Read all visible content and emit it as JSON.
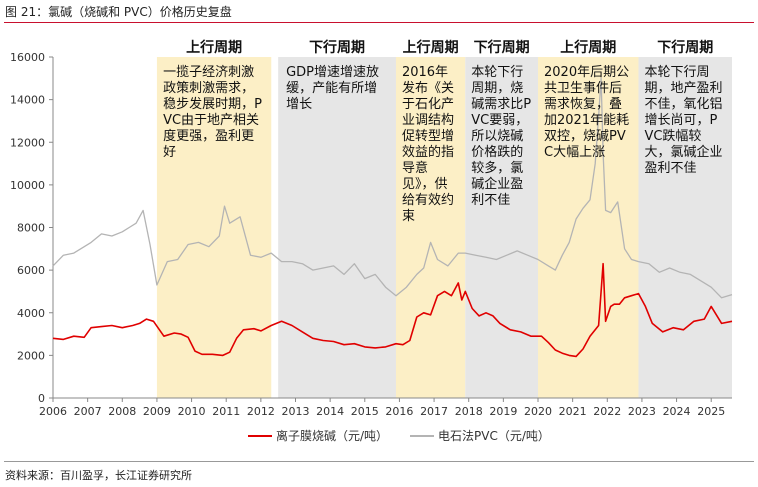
{
  "figure": {
    "title": "图 21：氯碱（烧碱和 PVC）价格历史复盘",
    "source": "资料来源：百川盈孚，长江证券研究所"
  },
  "chart_data": {
    "type": "line",
    "x_unit": "year",
    "xlim": [
      2006,
      2025.6
    ],
    "ylim": [
      0,
      16000
    ],
    "yticks": [
      0,
      2000,
      4000,
      6000,
      8000,
      10000,
      12000,
      14000,
      16000
    ],
    "xticks": [
      "2006",
      "2007",
      "2008",
      "2009",
      "2010",
      "2011",
      "2012",
      "2013",
      "2014",
      "2015",
      "2016",
      "2017",
      "2018",
      "2019",
      "2020",
      "2021",
      "2022",
      "2023",
      "2024",
      "2025"
    ],
    "grid": false,
    "legend_position": "bottom",
    "colors": {
      "up_band": "#fcefc6",
      "down_band": "#e6e6e6",
      "caustic": "#e00000",
      "pvc": "#b4b4b4"
    },
    "periods": [
      {
        "start": 2009.0,
        "end": 2012.3,
        "kind": "up",
        "header": "上行周期",
        "text": "一揽子经济刺激政策刺激需求，稳步发展时期，PVC由于地产相关度更强，盈利更好"
      },
      {
        "start": 2012.5,
        "end": 2015.9,
        "kind": "down",
        "header": "下行周期",
        "text": "GDP增速增速放缓，产能有所增增长"
      },
      {
        "start": 2015.9,
        "end": 2017.9,
        "kind": "up",
        "header": "上行周期",
        "text": "2016年发布《关于石化产业调结构促转型增效益的指导意见》，供给有效约束"
      },
      {
        "start": 2017.9,
        "end": 2020.0,
        "kind": "down",
        "header": "下行周期",
        "text": "本轮下行周期，烧碱需求比PVC要弱，所以烧碱价格跌的较多，氯碱企业盈利不佳"
      },
      {
        "start": 2020.0,
        "end": 2022.9,
        "kind": "up",
        "header": "上行周期",
        "text": "2020年后期公共卫生事件后需求恢复，叠加2021年能耗双控，烧碱PVC大幅上涨"
      },
      {
        "start": 2022.9,
        "end": 2025.6,
        "kind": "down",
        "header": "下行周期",
        "text": "本轮下行周期，地产盈利不佳，氧化铝增长尚可，PVC跌幅较大，氯碱企业盈利不佳"
      }
    ],
    "series": [
      {
        "name": "离子膜烧碱（元/吨）",
        "color": "#e00000",
        "x": [
          2006.0,
          2006.3,
          2006.6,
          2006.9,
          2007.1,
          2007.4,
          2007.7,
          2008.0,
          2008.3,
          2008.5,
          2008.7,
          2008.9,
          2009.2,
          2009.5,
          2009.7,
          2009.9,
          2010.1,
          2010.3,
          2010.6,
          2010.9,
          2011.1,
          2011.3,
          2011.5,
          2011.8,
          2012.0,
          2012.3,
          2012.6,
          2012.9,
          2013.2,
          2013.5,
          2013.8,
          2014.1,
          2014.4,
          2014.7,
          2015.0,
          2015.3,
          2015.6,
          2015.9,
          2016.1,
          2016.3,
          2016.5,
          2016.7,
          2016.9,
          2017.1,
          2017.3,
          2017.5,
          2017.7,
          2017.8,
          2017.9,
          2018.1,
          2018.3,
          2018.5,
          2018.7,
          2018.9,
          2019.2,
          2019.5,
          2019.8,
          2020.1,
          2020.3,
          2020.5,
          2020.7,
          2020.9,
          2021.1,
          2021.3,
          2021.5,
          2021.65,
          2021.75,
          2021.82,
          2021.88,
          2021.95,
          2022.1,
          2022.2,
          2022.35,
          2022.5,
          2022.7,
          2022.9,
          2023.1,
          2023.3,
          2023.6,
          2023.9,
          2024.2,
          2024.5,
          2024.8,
          2025.0,
          2025.3,
          2025.6
        ],
        "y": [
          2800,
          2750,
          2900,
          2850,
          3300,
          3350,
          3400,
          3300,
          3400,
          3500,
          3700,
          3600,
          2900,
          3050,
          3000,
          2850,
          2200,
          2050,
          2050,
          2000,
          2150,
          2800,
          3200,
          3250,
          3150,
          3400,
          3600,
          3400,
          3100,
          2800,
          2700,
          2650,
          2500,
          2550,
          2400,
          2350,
          2400,
          2550,
          2500,
          2700,
          3800,
          4000,
          3900,
          4800,
          5000,
          4800,
          5400,
          4600,
          5000,
          4200,
          3850,
          4000,
          3850,
          3500,
          3200,
          3100,
          2900,
          2900,
          2600,
          2250,
          2100,
          2000,
          1950,
          2300,
          2900,
          3200,
          3400,
          5000,
          6300,
          3600,
          4300,
          4400,
          4400,
          4700,
          4800,
          4900,
          4300,
          3500,
          3100,
          3300,
          3200,
          3600,
          3700,
          4300,
          3500,
          3600
        ]
      },
      {
        "name": "电石法PVC（元/吨）",
        "color": "#b4b4b4",
        "x": [
          2006.0,
          2006.3,
          2006.6,
          2006.9,
          2007.1,
          2007.4,
          2007.7,
          2008.0,
          2008.2,
          2008.4,
          2008.6,
          2008.8,
          2009.0,
          2009.3,
          2009.6,
          2009.9,
          2010.2,
          2010.5,
          2010.8,
          2010.95,
          2011.1,
          2011.4,
          2011.7,
          2012.0,
          2012.3,
          2012.6,
          2012.9,
          2013.2,
          2013.5,
          2013.8,
          2014.1,
          2014.4,
          2014.7,
          2015.0,
          2015.3,
          2015.6,
          2015.9,
          2016.2,
          2016.5,
          2016.7,
          2016.9,
          2017.1,
          2017.4,
          2017.7,
          2017.9,
          2018.2,
          2018.5,
          2018.8,
          2019.1,
          2019.4,
          2019.7,
          2020.0,
          2020.3,
          2020.5,
          2020.7,
          2020.9,
          2021.1,
          2021.3,
          2021.5,
          2021.65,
          2021.75,
          2021.82,
          2021.88,
          2021.95,
          2022.1,
          2022.3,
          2022.5,
          2022.7,
          2022.9,
          2023.2,
          2023.5,
          2023.8,
          2024.1,
          2024.4,
          2024.7,
          2025.0,
          2025.3,
          2025.6
        ],
        "y": [
          6200,
          6700,
          6800,
          7100,
          7300,
          7700,
          7600,
          7800,
          8000,
          8200,
          8800,
          7200,
          5300,
          6400,
          6500,
          7200,
          7300,
          7100,
          7600,
          9000,
          8200,
          8500,
          6700,
          6600,
          6800,
          6400,
          6400,
          6300,
          6000,
          6100,
          6200,
          5800,
          6300,
          5600,
          5800,
          5200,
          4800,
          5200,
          5800,
          6100,
          7300,
          6500,
          6200,
          6800,
          6800,
          6700,
          6600,
          6500,
          6700,
          6900,
          6700,
          6500,
          6200,
          6000,
          6700,
          7300,
          8400,
          8900,
          9300,
          11000,
          13200,
          15000,
          11500,
          8800,
          8700,
          9200,
          7000,
          6500,
          6400,
          6300,
          5900,
          6100,
          5900,
          5800,
          5500,
          5200,
          4700,
          4850
        ]
      }
    ]
  }
}
